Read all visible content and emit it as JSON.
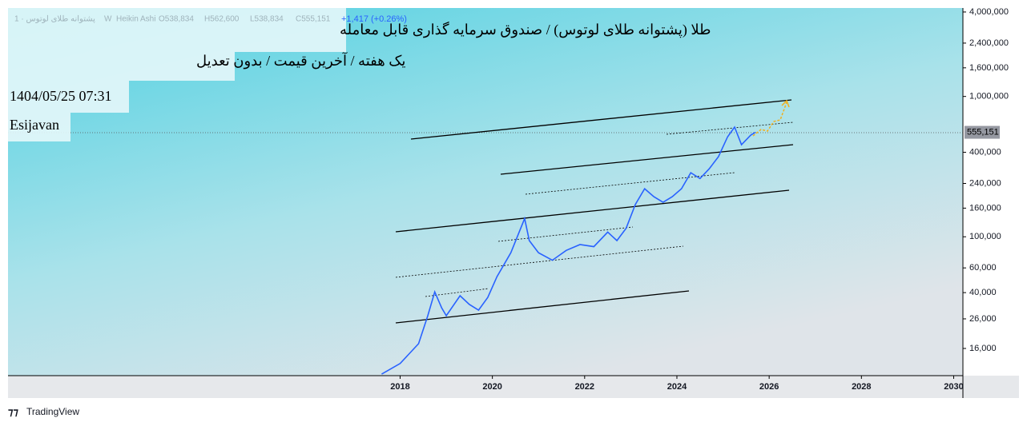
{
  "header": {
    "title": "طلا (پشتوانه طلای لوتوس) / صندوق سرمایه گذاری قابل معامله",
    "subtitle": "یک هفته / آخرین قیمت / بدون تعدیل",
    "datetime": "1404/05/25 07:31",
    "author": "Esijavan"
  },
  "legend": {
    "symbol": "پشتوانه طلای لوتوس · 1",
    "interval": "W",
    "style": "Heikin Ashi",
    "open": "O538,834",
    "high": "H562,600",
    "low": "L538,834",
    "close": "C555,151",
    "change": "+1,417 (+0.26%)"
  },
  "brand": "TradingView",
  "chart_data": {
    "type": "line",
    "log_scale": true,
    "color": "#2962ff",
    "x": [
      2017.6,
      2018.0,
      2018.4,
      2018.6,
      2018.75,
      2018.9,
      2019.0,
      2019.3,
      2019.5,
      2019.7,
      2019.9,
      2020.1,
      2020.4,
      2020.7,
      2020.8,
      2021.0,
      2021.3,
      2021.6,
      2021.9,
      2022.2,
      2022.5,
      2022.7,
      2022.9,
      2023.1,
      2023.3,
      2023.5,
      2023.7,
      2023.9,
      2024.1,
      2024.3,
      2024.5,
      2024.7,
      2024.9,
      2025.1,
      2025.25,
      2025.4,
      2025.6,
      2025.7
    ],
    "values": [
      10500,
      12500,
      17300,
      27400,
      40500,
      31200,
      27400,
      38000,
      33000,
      30000,
      37000,
      52000,
      77000,
      135000,
      94000,
      77000,
      68000,
      80000,
      88000,
      85000,
      108000,
      94000,
      115000,
      170000,
      220000,
      193000,
      176000,
      193000,
      220000,
      286000,
      260000,
      305000,
      372000,
      516000,
      605000,
      453000,
      530000,
      555151
    ],
    "last_price": {
      "value": 555151,
      "label": "555,151"
    },
    "xlim": [
      2009.5,
      2030.2
    ],
    "xticks": [
      2018,
      2020,
      2022,
      2024,
      2026,
      2028,
      2030
    ],
    "ylim": [
      10240,
      4270000
    ],
    "yticks": [
      {
        "value": 16000,
        "label": "16,000"
      },
      {
        "value": 26000,
        "label": "26,000"
      },
      {
        "value": 40000,
        "label": "40,000"
      },
      {
        "value": 60000,
        "label": "60,000"
      },
      {
        "value": 100000,
        "label": "100,000"
      },
      {
        "value": 160000,
        "label": "160,000"
      },
      {
        "value": 240000,
        "label": "240,000"
      },
      {
        "value": 400000,
        "label": "400,000"
      },
      {
        "value": 1000000,
        "label": "1,000,000"
      },
      {
        "value": 1600000,
        "label": "1,600,000"
      },
      {
        "value": 2400000,
        "label": "2,400,000"
      },
      {
        "value": 4000000,
        "label": "4,000,000"
      }
    ]
  }
}
